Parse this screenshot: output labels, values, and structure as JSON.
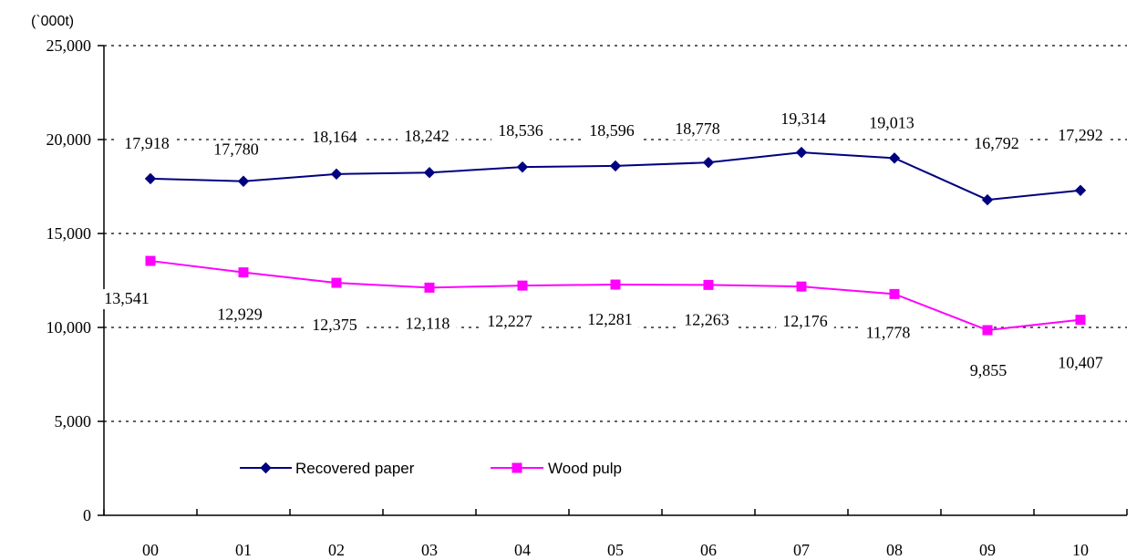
{
  "chart_data": {
    "type": "line",
    "unit_label": "(`000t)",
    "categories": [
      "00",
      "01",
      "02",
      "03",
      "04",
      "05",
      "06",
      "07",
      "08",
      "09",
      "10"
    ],
    "ylim": [
      0,
      25000
    ],
    "yticks": [
      0,
      5000,
      10000,
      15000,
      20000,
      25000
    ],
    "ytick_labels": [
      "0",
      "5,000",
      "10,000",
      "15,000",
      "20,000",
      "25,000"
    ],
    "grid": "horizontal-dotted",
    "legend_placement": "bottom-left-inside",
    "series": [
      {
        "name": "Recovered paper",
        "color": "#000080",
        "marker": "diamond",
        "values": [
          17918,
          17780,
          18164,
          18242,
          18536,
          18596,
          18778,
          19314,
          19013,
          16792,
          17292
        ],
        "labels": [
          "17,918",
          "17,780",
          "18,164",
          "18,242",
          "18,536",
          "18,596",
          "18,778",
          "19,314",
          "19,013",
          "16,792",
          "17,292"
        ]
      },
      {
        "name": "Wood pulp",
        "color": "#ff00ff",
        "marker": "square",
        "values": [
          13541,
          12929,
          12375,
          12118,
          12227,
          12281,
          12263,
          12176,
          11778,
          9855,
          10407
        ],
        "labels": [
          "13,541",
          "12,929",
          "12,375",
          "12,118",
          "12,227",
          "12,281",
          "12,263",
          "12,176",
          "11,778",
          "9,855",
          "10,407"
        ]
      }
    ]
  }
}
